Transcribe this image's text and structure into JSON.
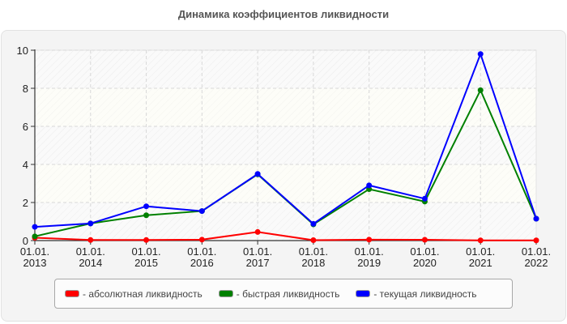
{
  "title": "Динамика коэффициентов ликвидности",
  "legend": {
    "items": [
      {
        "label": "- абсолютная ликвидность",
        "color": "#ff0000"
      },
      {
        "label": "- быстрая ликвидность",
        "color": "#008000"
      },
      {
        "label": "- текущая ликвидность",
        "color": "#0000ff"
      }
    ]
  },
  "chart_data": {
    "type": "line",
    "title": "Динамика коэффициентов ликвидности",
    "xlabel": "",
    "ylabel": "",
    "categories": [
      "01.01.\n2013",
      "01.01.\n2014",
      "01.01.\n2015",
      "01.01.\n2016",
      "01.01.\n2017",
      "01.01.\n2018",
      "01.01.\n2019",
      "01.01.\n2020",
      "01.01.\n2021",
      "01.01.\n2022"
    ],
    "x_labels_line1": [
      "01.01.",
      "01.01.",
      "01.01.",
      "01.01.",
      "01.01.",
      "01.01.",
      "01.01.",
      "01.01.",
      "01.01.",
      "01.01."
    ],
    "x_labels_line2": [
      "2013",
      "2014",
      "2015",
      "2016",
      "2017",
      "2018",
      "2019",
      "2020",
      "2021",
      "2022"
    ],
    "yticks": [
      0,
      2,
      4,
      6,
      8,
      10
    ],
    "ylim": [
      0,
      10
    ],
    "grid": true,
    "legend_position": "bottom",
    "series": [
      {
        "name": "абсолютная ликвидность",
        "color": "#ff0000",
        "values": [
          0.15,
          0.03,
          0.03,
          0.05,
          0.45,
          0.02,
          0.05,
          0.04,
          0.01,
          0.01
        ]
      },
      {
        "name": "быстрая ликвидность",
        "color": "#008000",
        "values": [
          0.22,
          0.9,
          1.33,
          1.55,
          3.48,
          0.85,
          2.7,
          2.05,
          7.9,
          1.15
        ]
      },
      {
        "name": "текущая ликвидность",
        "color": "#0000ff",
        "values": [
          0.72,
          0.9,
          1.8,
          1.55,
          3.5,
          0.88,
          2.9,
          2.2,
          9.8,
          1.15
        ]
      }
    ]
  }
}
